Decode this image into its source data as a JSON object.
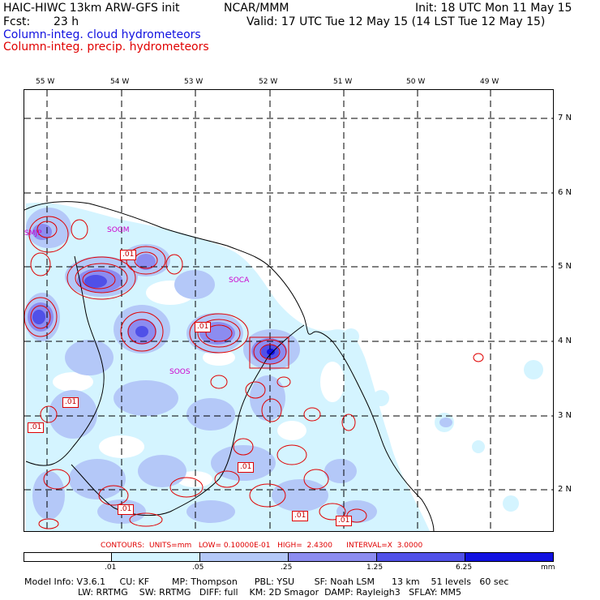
{
  "header": {
    "model_title": "HAIC-HIWC 13km ARW-GFS init",
    "center": "NCAR/MMM",
    "init": "Init: 18 UTC Mon 11 May 15",
    "fcst_label": "Fcst:",
    "fcst_value": "23 h",
    "valid": "Valid: 17 UTC Tue 12 May 15 (14 LST Tue 12 May 15)",
    "field_cloud": "Column-integ. cloud hydrometeors",
    "field_precip": "Column-integ. precip. hydrometeors",
    "field_cloud_color": "#1010e0",
    "field_precip_color": "#e00000"
  },
  "map": {
    "lon_labels": [
      "55 W",
      "54 W",
      "53 W",
      "52 W",
      "51 W",
      "50 W",
      "49 W"
    ],
    "lat_labels": [
      "7 N",
      "6 N",
      "5 N",
      "4 N",
      "3 N",
      "2 N"
    ],
    "stations": [
      "SMJP",
      "SOGM",
      "SOCA",
      "SOOS"
    ],
    "contour_labels": [
      ".01",
      ".01",
      ".01",
      ".01",
      ".01",
      ".01",
      ".01",
      ".01"
    ],
    "colors": {
      "coast": "#000000",
      "grid": "#000000",
      "precip_contour": "#e00000",
      "station_text": "#cc00cc"
    }
  },
  "contours_info": "CONTOURS:  UNITS=mm   LOW= 0.10000E-01   HIGH=  2.4300      INTERVAL=X  3.0000",
  "colorbar": {
    "labels": [
      ".01",
      ".05",
      ".25",
      "1.25",
      "6.25",
      "mm"
    ],
    "colors": [
      "#ffffff",
      "#d4f4ff",
      "#b4c8f8",
      "#8c8cf0",
      "#5050e8",
      "#1010e0"
    ]
  },
  "model_info": {
    "line1": "Model Info: V3.6.1     CU: KF        MP: Thompson      PBL: YSU       SF: Noah LSM      13 km    51 levels   60 sec",
    "line2": "LW: RRTMG    SW: RRTMG   DIFF: full    KM: 2D Smagor  DAMP: Rayleigh3   SFLAY: MM5"
  }
}
